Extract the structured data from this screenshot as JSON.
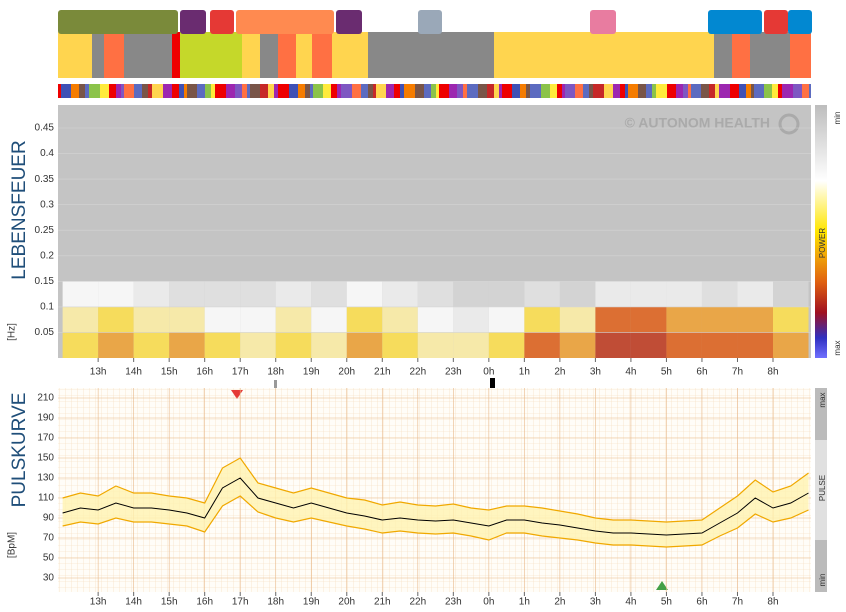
{
  "watermark": "© AUTONOM HEALTH",
  "chart_data": [
    {
      "type": "heatmap",
      "title": "LEBENSFEUER",
      "y_label": "[Hz]",
      "colorbar_labels": [
        "min",
        "POWER",
        "max"
      ],
      "xlim": [
        11.87,
        33.07
      ],
      "xticks": [
        {
          "value": 13,
          "label": "13h"
        },
        {
          "value": 14,
          "label": "14h"
        },
        {
          "value": 15,
          "label": "15h"
        },
        {
          "value": 16,
          "label": "16h"
        },
        {
          "value": 17,
          "label": "17h"
        },
        {
          "value": 18,
          "label": "18h"
        },
        {
          "value": 19,
          "label": "19h"
        },
        {
          "value": 20,
          "label": "20h"
        },
        {
          "value": 21,
          "label": "21h"
        },
        {
          "value": 22,
          "label": "22h"
        },
        {
          "value": 23,
          "label": "23h"
        },
        {
          "value": 24,
          "label": "0h"
        },
        {
          "value": 25,
          "label": "1h"
        },
        {
          "value": 26,
          "label": "2h"
        },
        {
          "value": 27,
          "label": "3h"
        },
        {
          "value": 28,
          "label": "4h"
        },
        {
          "value": 29,
          "label": "5h"
        },
        {
          "value": 30,
          "label": "6h"
        },
        {
          "value": 31,
          "label": "7h"
        },
        {
          "value": 32,
          "label": "8h"
        }
      ],
      "ylim": [
        0,
        0.495
      ],
      "yticks": [
        0.05,
        0.1,
        0.15,
        0.2,
        0.25,
        0.3,
        0.35,
        0.4,
        0.45
      ],
      "x": [
        12,
        13,
        14,
        15,
        16,
        17,
        18,
        19,
        20,
        21,
        22,
        23,
        24,
        25,
        26,
        27,
        28,
        29,
        30,
        31,
        32
      ],
      "y_bins": [
        0,
        0.05,
        0.1,
        0.15
      ],
      "values": [
        [
          0.6,
          0.7,
          0.6,
          0.7,
          0.6,
          0.5,
          0.6,
          0.5,
          0.7,
          0.6,
          0.5,
          0.5,
          0.6,
          0.8,
          0.7,
          0.9,
          0.9,
          0.8,
          0.8,
          0.8,
          0.7
        ],
        [
          0.5,
          0.6,
          0.5,
          0.5,
          0.4,
          0.4,
          0.5,
          0.4,
          0.6,
          0.5,
          0.4,
          0.3,
          0.4,
          0.6,
          0.5,
          0.8,
          0.8,
          0.7,
          0.7,
          0.7,
          0.6
        ],
        [
          0.4,
          0.4,
          0.3,
          0.2,
          0.2,
          0.2,
          0.3,
          0.2,
          0.4,
          0.3,
          0.2,
          0.1,
          0.1,
          0.2,
          0.1,
          0.3,
          0.3,
          0.3,
          0.2,
          0.3,
          0.1
        ]
      ]
    },
    {
      "type": "line",
      "title": "PULSKURVE",
      "y_label": "[BpM]",
      "side_labels": [
        "max",
        "PULSE",
        "min"
      ],
      "xlim": [
        11.87,
        33.07
      ],
      "xticks": [
        {
          "value": 13,
          "label": "13h"
        },
        {
          "value": 14,
          "label": "14h"
        },
        {
          "value": 15,
          "label": "15h"
        },
        {
          "value": 16,
          "label": "16h"
        },
        {
          "value": 17,
          "label": "17h"
        },
        {
          "value": 18,
          "label": "18h"
        },
        {
          "value": 19,
          "label": "19h"
        },
        {
          "value": 20,
          "label": "20h"
        },
        {
          "value": 21,
          "label": "21h"
        },
        {
          "value": 22,
          "label": "22h"
        },
        {
          "value": 23,
          "label": "23h"
        },
        {
          "value": 24,
          "label": "0h"
        },
        {
          "value": 25,
          "label": "1h"
        },
        {
          "value": 26,
          "label": "2h"
        },
        {
          "value": 27,
          "label": "3h"
        },
        {
          "value": 28,
          "label": "4h"
        },
        {
          "value": 29,
          "label": "5h"
        },
        {
          "value": 30,
          "label": "6h"
        },
        {
          "value": 31,
          "label": "7h"
        },
        {
          "value": 32,
          "label": "8h"
        }
      ],
      "ylim": [
        16,
        220
      ],
      "yticks": [
        30,
        50,
        70,
        90,
        110,
        130,
        150,
        170,
        190,
        210
      ],
      "x": [
        12,
        12.5,
        13,
        13.5,
        14,
        14.5,
        15,
        15.5,
        16,
        16.5,
        17,
        17.5,
        18,
        18.5,
        19,
        19.5,
        20,
        20.5,
        21,
        21.5,
        22,
        22.5,
        23,
        23.5,
        24,
        24.5,
        25,
        25.5,
        26,
        26.5,
        27,
        27.5,
        28,
        28.5,
        29,
        29.5,
        30,
        30.5,
        31,
        31.5,
        32,
        32.5,
        33
      ],
      "series": [
        {
          "color": "#f0a800",
          "values": [
            110,
            115,
            112,
            122,
            115,
            115,
            112,
            110,
            105,
            140,
            150,
            125,
            120,
            115,
            120,
            115,
            110,
            108,
            103,
            106,
            103,
            102,
            104,
            100,
            98,
            102,
            102,
            100,
            97,
            94,
            90,
            88,
            88,
            87,
            86,
            87,
            88,
            100,
            112,
            128,
            116,
            122,
            135
          ]
        },
        {
          "color": "#f0a800",
          "values": [
            82,
            86,
            84,
            90,
            86,
            86,
            84,
            82,
            76,
            102,
            112,
            96,
            90,
            86,
            90,
            86,
            82,
            79,
            75,
            77,
            75,
            74,
            75,
            72,
            68,
            75,
            75,
            72,
            70,
            68,
            65,
            63,
            63,
            62,
            61,
            62,
            63,
            72,
            80,
            94,
            86,
            90,
            98
          ]
        },
        {
          "color": "#000000",
          "values": [
            95,
            100,
            98,
            105,
            100,
            100,
            98,
            95,
            90,
            120,
            130,
            110,
            105,
            100,
            105,
            100,
            95,
            92,
            88,
            90,
            88,
            87,
            88,
            85,
            82,
            88,
            88,
            85,
            83,
            80,
            77,
            75,
            75,
            74,
            73,
            74,
            75,
            85,
            95,
            110,
            100,
            105,
            115
          ]
        }
      ]
    }
  ]
}
